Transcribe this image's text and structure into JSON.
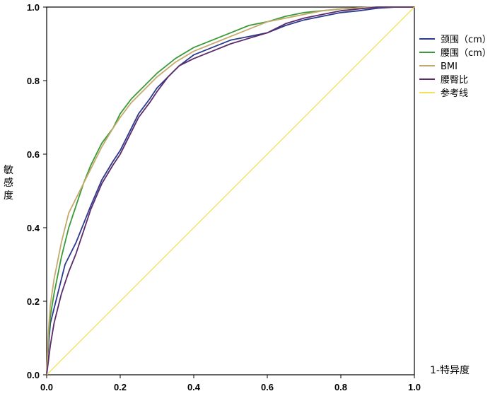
{
  "chart_data": {
    "type": "line",
    "title": "",
    "xlabel": "1-特异度",
    "ylabel": "敏感度",
    "xlim": [
      0.0,
      1.0
    ],
    "ylim": [
      0.0,
      1.0
    ],
    "x_ticks": [
      "0.0",
      "0.2",
      "0.4",
      "0.6",
      "0.8",
      "1.0"
    ],
    "y_ticks": [
      "0.0",
      "0.2",
      "0.4",
      "0.6",
      "0.8",
      "1.0"
    ],
    "grid": false,
    "legend_position": "right",
    "series": [
      {
        "name": "颈围（cm）",
        "color": "#2b3a8c",
        "points": [
          [
            0,
            0
          ],
          [
            0.005,
            0.08
          ],
          [
            0.01,
            0.14
          ],
          [
            0.02,
            0.18
          ],
          [
            0.03,
            0.22
          ],
          [
            0.04,
            0.26
          ],
          [
            0.05,
            0.3
          ],
          [
            0.06,
            0.32
          ],
          [
            0.08,
            0.36
          ],
          [
            0.1,
            0.41
          ],
          [
            0.12,
            0.46
          ],
          [
            0.15,
            0.53
          ],
          [
            0.18,
            0.58
          ],
          [
            0.2,
            0.61
          ],
          [
            0.22,
            0.65
          ],
          [
            0.25,
            0.71
          ],
          [
            0.28,
            0.75
          ],
          [
            0.3,
            0.78
          ],
          [
            0.33,
            0.81
          ],
          [
            0.36,
            0.84
          ],
          [
            0.4,
            0.87
          ],
          [
            0.45,
            0.89
          ],
          [
            0.5,
            0.91
          ],
          [
            0.55,
            0.92
          ],
          [
            0.6,
            0.93
          ],
          [
            0.65,
            0.95
          ],
          [
            0.7,
            0.965
          ],
          [
            0.75,
            0.975
          ],
          [
            0.8,
            0.985
          ],
          [
            0.85,
            0.99
          ],
          [
            0.9,
            0.997
          ],
          [
            0.95,
            1.0
          ],
          [
            1.0,
            1.0
          ]
        ]
      },
      {
        "name": "腰围（cm）",
        "color": "#3a9a3a",
        "points": [
          [
            0,
            0
          ],
          [
            0.005,
            0.1
          ],
          [
            0.01,
            0.16
          ],
          [
            0.02,
            0.22
          ],
          [
            0.03,
            0.27
          ],
          [
            0.04,
            0.32
          ],
          [
            0.05,
            0.36
          ],
          [
            0.06,
            0.4
          ],
          [
            0.08,
            0.46
          ],
          [
            0.1,
            0.52
          ],
          [
            0.12,
            0.57
          ],
          [
            0.15,
            0.63
          ],
          [
            0.18,
            0.67
          ],
          [
            0.2,
            0.71
          ],
          [
            0.23,
            0.75
          ],
          [
            0.26,
            0.78
          ],
          [
            0.3,
            0.82
          ],
          [
            0.35,
            0.86
          ],
          [
            0.4,
            0.89
          ],
          [
            0.45,
            0.91
          ],
          [
            0.5,
            0.93
          ],
          [
            0.55,
            0.95
          ],
          [
            0.6,
            0.96
          ],
          [
            0.65,
            0.975
          ],
          [
            0.7,
            0.985
          ],
          [
            0.75,
            0.99
          ],
          [
            0.8,
            0.995
          ],
          [
            0.85,
            0.998
          ],
          [
            0.9,
            1.0
          ],
          [
            1.0,
            1.0
          ]
        ]
      },
      {
        "name": "BMI",
        "color": "#c4aa6c",
        "points": [
          [
            0,
            0
          ],
          [
            0.005,
            0.12
          ],
          [
            0.01,
            0.19
          ],
          [
            0.02,
            0.26
          ],
          [
            0.03,
            0.31
          ],
          [
            0.04,
            0.36
          ],
          [
            0.05,
            0.4
          ],
          [
            0.06,
            0.44
          ],
          [
            0.08,
            0.48
          ],
          [
            0.1,
            0.52
          ],
          [
            0.12,
            0.56
          ],
          [
            0.15,
            0.62
          ],
          [
            0.18,
            0.67
          ],
          [
            0.2,
            0.7
          ],
          [
            0.23,
            0.74
          ],
          [
            0.26,
            0.77
          ],
          [
            0.3,
            0.81
          ],
          [
            0.35,
            0.85
          ],
          [
            0.4,
            0.88
          ],
          [
            0.45,
            0.9
          ],
          [
            0.5,
            0.92
          ],
          [
            0.55,
            0.94
          ],
          [
            0.6,
            0.96
          ],
          [
            0.65,
            0.97
          ],
          [
            0.7,
            0.98
          ],
          [
            0.75,
            0.99
          ],
          [
            0.8,
            0.995
          ],
          [
            0.85,
            0.998
          ],
          [
            0.9,
            1.0
          ],
          [
            1.0,
            1.0
          ]
        ]
      },
      {
        "name": "腰臀比",
        "color": "#5a2a6a",
        "points": [
          [
            0,
            0
          ],
          [
            0.005,
            0.04
          ],
          [
            0.01,
            0.08
          ],
          [
            0.02,
            0.14
          ],
          [
            0.03,
            0.18
          ],
          [
            0.04,
            0.22
          ],
          [
            0.05,
            0.25
          ],
          [
            0.06,
            0.28
          ],
          [
            0.08,
            0.33
          ],
          [
            0.1,
            0.39
          ],
          [
            0.12,
            0.45
          ],
          [
            0.15,
            0.52
          ],
          [
            0.18,
            0.57
          ],
          [
            0.2,
            0.6
          ],
          [
            0.22,
            0.64
          ],
          [
            0.25,
            0.7
          ],
          [
            0.28,
            0.74
          ],
          [
            0.3,
            0.77
          ],
          [
            0.33,
            0.81
          ],
          [
            0.36,
            0.84
          ],
          [
            0.4,
            0.86
          ],
          [
            0.45,
            0.88
          ],
          [
            0.5,
            0.9
          ],
          [
            0.55,
            0.915
          ],
          [
            0.6,
            0.93
          ],
          [
            0.65,
            0.955
          ],
          [
            0.7,
            0.97
          ],
          [
            0.75,
            0.98
          ],
          [
            0.8,
            0.99
          ],
          [
            0.85,
            0.995
          ],
          [
            0.9,
            1.0
          ],
          [
            1.0,
            1.0
          ]
        ]
      },
      {
        "name": "参考线",
        "color": "#f5e05a",
        "points": [
          [
            0,
            0
          ],
          [
            1,
            1
          ]
        ]
      }
    ]
  }
}
